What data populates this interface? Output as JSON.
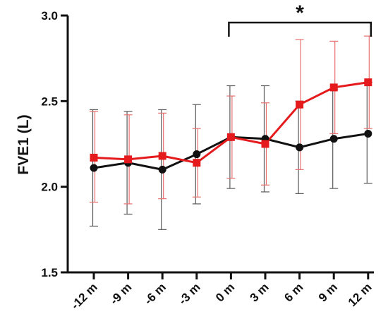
{
  "chart_data": {
    "type": "line",
    "title": "",
    "xlabel": "",
    "ylabel": "FVE1 (L)",
    "categories": [
      "-12 m",
      "-9 m",
      "-6 m",
      "-3 m",
      "0 m",
      "3 m",
      "6 m",
      "9 m",
      "12 m"
    ],
    "ylim": [
      1.5,
      3.0
    ],
    "yticks": [
      "1.5",
      "2.0",
      "2.5",
      "3.0"
    ],
    "grid": false,
    "legend": "none",
    "series": [
      {
        "color": "#e41a1c",
        "marker": "square",
        "values": [
          2.17,
          2.16,
          2.18,
          2.14,
          2.29,
          2.25,
          2.48,
          2.58,
          2.61
        ],
        "error_upper": [
          2.44,
          2.42,
          2.43,
          2.34,
          2.53,
          2.49,
          2.86,
          2.85,
          2.88
        ],
        "error_lower": [
          1.91,
          1.9,
          1.93,
          1.94,
          2.05,
          2.01,
          2.1,
          2.31,
          2.34
        ]
      },
      {
        "color": "#111111",
        "marker": "circle",
        "values": [
          2.11,
          2.14,
          2.1,
          2.19,
          2.29,
          2.28,
          2.23,
          2.28,
          2.31
        ],
        "error_upper": [
          2.45,
          2.44,
          2.45,
          2.48,
          2.59,
          2.59,
          2.5,
          2.57,
          2.61
        ],
        "error_lower": [
          1.77,
          1.84,
          1.75,
          1.9,
          1.99,
          1.97,
          1.96,
          1.99,
          2.02
        ]
      }
    ],
    "annotations": [
      {
        "text": "*",
        "from_category": "0 m",
        "to_category": "12 m",
        "type": "significance-bracket"
      }
    ]
  }
}
